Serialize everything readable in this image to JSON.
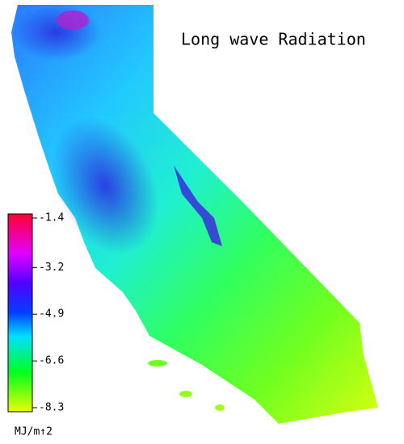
{
  "title": "Long wave Radiation",
  "colorbar": {
    "range": [
      -1.4,
      -8.3
    ],
    "ticks": [
      -1.4,
      -3.2,
      -4.9,
      -6.6,
      -8.3
    ],
    "unit": "MJ/m↑2"
  }
}
